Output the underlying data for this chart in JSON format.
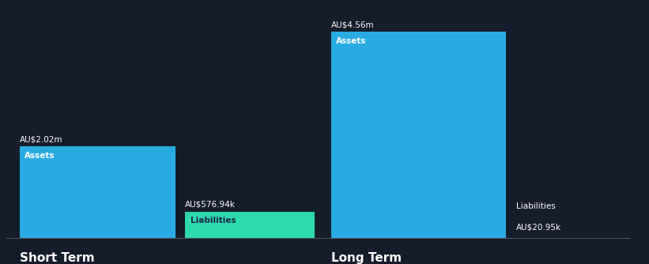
{
  "background_color": "#151c2c",
  "bar_color_assets": "#29ABE2",
  "bar_color_liabilities": "#2DD9B0",
  "text_color": "#ffffff",
  "label_color_liab": "#1a2a3a",
  "short_term": {
    "assets_value": 2020000,
    "liabilities_value": 576940,
    "assets_label": "AU$2.02m",
    "liabilities_label": "AU$576.94k",
    "assets_text": "Assets",
    "liabilities_text": "Liabilities",
    "title": "Short Term"
  },
  "long_term": {
    "assets_value": 4560000,
    "liabilities_value": 20950,
    "assets_label": "AU$4.56m",
    "liabilities_label": "AU$20.95k",
    "assets_text": "Assets",
    "liabilities_text": "Liabilities",
    "title": "Long Term"
  }
}
